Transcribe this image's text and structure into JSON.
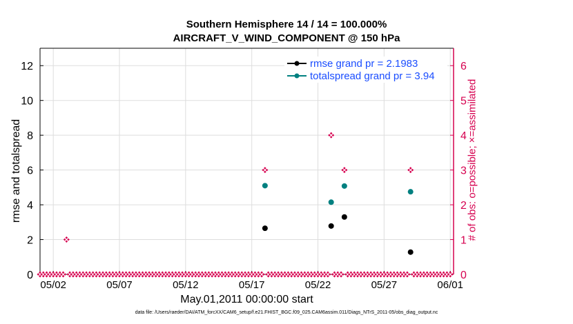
{
  "title_line1": "Southern Hemisphere 14 / 14 = 100.000%",
  "title_line2": "AIRCRAFT_V_WIND_COMPONENT @ 150 hPa",
  "footer": "data file: /Users/raeder/DAI/ATM_forcXX/CAM6_setup/f.e21.FHIST_BGC.f09_025.CAM6assim.011/Diags_NTrS_2011-05/obs_diag_output.nc",
  "colors": {
    "rmse": "#000000",
    "spread": "#008080",
    "obs": "#d6004f",
    "grid": "#dddddd",
    "legend_text": "#1a4dff"
  },
  "chart_data": {
    "type": "scatter",
    "xlabel": "May.01,2011 00:00:00 start",
    "ylabel": "rmse and totalspread",
    "ylabel_right": "# of obs: o=possible; ×=assimilated",
    "xlim": [
      "2011-05-01T00:00",
      "2011-06-01T06:00"
    ],
    "ylim": [
      0,
      13
    ],
    "ylim_right": [
      0,
      6.5
    ],
    "x_ticks": [
      "05/02",
      "05/07",
      "05/12",
      "05/17",
      "05/22",
      "05/27",
      "06/01"
    ],
    "x_tick_dates": [
      "2011-05-02",
      "2011-05-07",
      "2011-05-12",
      "2011-05-17",
      "2011-05-22",
      "2011-05-27",
      "2011-06-01"
    ],
    "y_ticks": [
      0,
      2,
      4,
      6,
      8,
      10,
      12
    ],
    "y_ticks_right": [
      0,
      1,
      2,
      3,
      4,
      5,
      6
    ],
    "grid": true,
    "legend_position": "top-right",
    "series": [
      {
        "name": "rmse grand pr = 2.1983",
        "axis": "left",
        "points": [
          {
            "x": "2011-05-18T00:00",
            "y": 2.65
          },
          {
            "x": "2011-05-23T00:00",
            "y": 2.78
          },
          {
            "x": "2011-05-24T00:00",
            "y": 3.3
          },
          {
            "x": "2011-05-29T00:00",
            "y": 1.28
          }
        ]
      },
      {
        "name": "totalspread grand pr = 3.94",
        "axis": "left",
        "points": [
          {
            "x": "2011-05-18T00:00",
            "y": 5.1
          },
          {
            "x": "2011-05-23T00:00",
            "y": 4.15
          },
          {
            "x": "2011-05-24T00:00",
            "y": 5.08
          },
          {
            "x": "2011-05-29T00:00",
            "y": 4.75
          }
        ]
      },
      {
        "name": "# of obs",
        "axis": "right",
        "start": "2011-05-01T00:00",
        "step_hours": 6,
        "count": 125,
        "nonzero": [
          {
            "x": "2011-05-03T00:00",
            "y": 1
          },
          {
            "x": "2011-05-18T00:00",
            "y": 3
          },
          {
            "x": "2011-05-23T00:00",
            "y": 4
          },
          {
            "x": "2011-05-24T00:00",
            "y": 3
          },
          {
            "x": "2011-05-29T00:00",
            "y": 3
          }
        ]
      }
    ]
  }
}
